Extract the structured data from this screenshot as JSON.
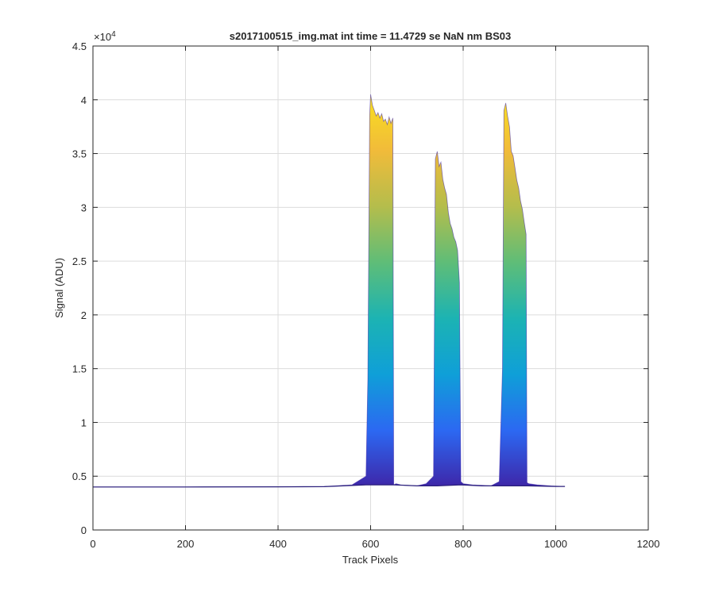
{
  "chart_data": {
    "type": "area",
    "title": "s2017100515_img.mat int time = 11.4729 se  NaN nm BS03",
    "xlabel": "Track Pixels",
    "ylabel": "Signal (ADU)",
    "xlim": [
      0,
      1200
    ],
    "ylim": [
      0,
      45000
    ],
    "y_exponent_label": "×10",
    "y_exponent_power": "4",
    "grid": true,
    "x_ticks": [
      0,
      200,
      400,
      600,
      800,
      1000,
      1200
    ],
    "x_tick_labels": [
      "0",
      "200",
      "400",
      "600",
      "800",
      "1000",
      "1200"
    ],
    "y_ticks": [
      0,
      5000,
      10000,
      15000,
      20000,
      25000,
      30000,
      35000,
      40000,
      45000
    ],
    "y_tick_labels": [
      "0",
      "0.5",
      "1",
      "1.5",
      "2",
      "2.5",
      "3",
      "3.5",
      "4",
      "4.5"
    ],
    "colormap": [
      "#3e26a8",
      "#2c68f2",
      "#0f9fd8",
      "#1cb3b3",
      "#5ebd78",
      "#b4bd4c",
      "#f1bb3a",
      "#f9e11e"
    ],
    "envelope": {
      "x": [
        0,
        100,
        200,
        300,
        400,
        500,
        560,
        590,
        594,
        598,
        600,
        604,
        608,
        612,
        616,
        620,
        624,
        628,
        632,
        636,
        640,
        644,
        648,
        650,
        655,
        665,
        680,
        700,
        720,
        736,
        740,
        744,
        748,
        752,
        756,
        760,
        764,
        768,
        772,
        776,
        780,
        784,
        788,
        792,
        795,
        800,
        820,
        840,
        860,
        878,
        885,
        888,
        892,
        896,
        900,
        904,
        908,
        912,
        916,
        920,
        924,
        928,
        932,
        936,
        938,
        942,
        960,
        990,
        1020
      ],
      "y": [
        4000,
        4000,
        4000,
        4010,
        4020,
        4050,
        4200,
        5000,
        14000,
        38500,
        40500,
        39500,
        39000,
        38500,
        38800,
        38300,
        38700,
        38000,
        38200,
        37700,
        38400,
        37800,
        38300,
        4200,
        4300,
        4200,
        4150,
        4100,
        4300,
        5000,
        34500,
        35200,
        33800,
        34200,
        32600,
        31800,
        31200,
        29500,
        28500,
        28000,
        27200,
        26800,
        26000,
        23000,
        4500,
        4300,
        4200,
        4150,
        4100,
        4500,
        15000,
        39000,
        39700,
        38500,
        37500,
        35200,
        34800,
        33700,
        32500,
        31800,
        30600,
        29800,
        28600,
        27500,
        4400,
        4300,
        4200,
        4100,
        4050
      ]
    },
    "baseline": {
      "x": [
        0,
        200,
        400,
        500,
        590,
        598,
        650,
        700,
        736,
        744,
        795,
        840,
        880,
        888,
        940,
        1000,
        1020
      ],
      "y": [
        4000,
        4000,
        4010,
        4030,
        4200,
        4200,
        4200,
        4100,
        4100,
        4100,
        4200,
        4100,
        4100,
        4100,
        4100,
        4050,
        4050
      ]
    }
  }
}
